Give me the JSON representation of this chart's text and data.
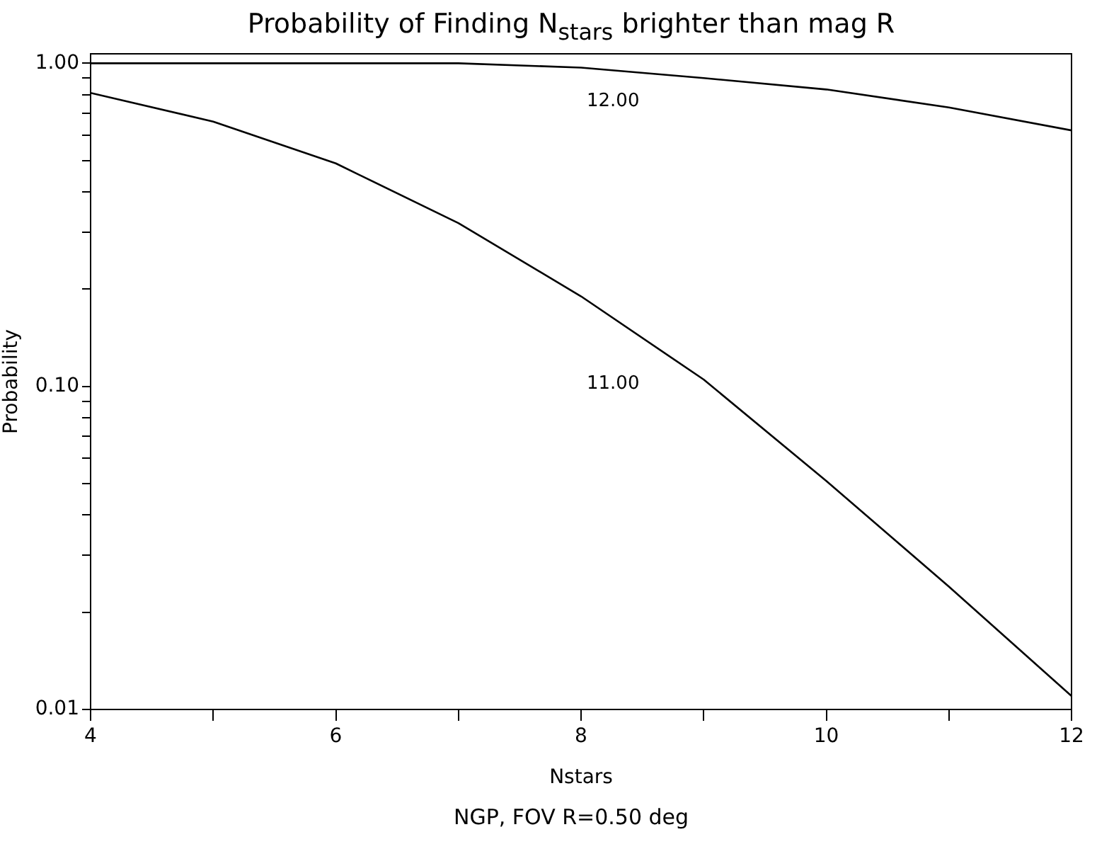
{
  "chart_data": {
    "type": "line",
    "title": "Probability of Finding N$_{stars}$ brighter than mag R",
    "xlabel": "Nstars",
    "ylabel": "Probability",
    "annotations": [
      "NGP, FOV R=0.50 deg"
    ],
    "x": [
      4,
      5,
      6,
      7,
      8,
      9,
      10,
      11,
      12
    ],
    "series": [
      {
        "name": "12.00",
        "color": "#000000",
        "values": [
          1.0,
          1.0,
          1.0,
          1.0,
          0.97,
          0.9,
          0.83,
          0.73,
          0.62
        ]
      },
      {
        "name": "11.00",
        "color": "#000000",
        "values": [
          0.81,
          0.66,
          0.49,
          0.32,
          0.19,
          0.105,
          0.051,
          0.024,
          0.011
        ]
      }
    ],
    "log": "y",
    "grid": false,
    "legend": false,
    "marker": "none",
    "line_style": "solid",
    "xlim": [
      4,
      12
    ],
    "xticks": [
      4,
      {
        "value": 5,
        "label": null
      },
      6,
      {
        "value": 7,
        "label": null
      },
      8,
      {
        "value": 9,
        "label": null
      },
      10,
      {
        "value": 11,
        "label": null
      },
      12
    ],
    "ylim": [
      0.01,
      1.07
    ],
    "yticks": [
      {
        "value": 0.01,
        "label": "0.01"
      },
      {
        "value": 0.02,
        "label": null
      },
      {
        "value": 0.03,
        "label": null
      },
      {
        "value": 0.04,
        "label": null
      },
      {
        "value": 0.05,
        "label": null
      },
      {
        "value": 0.06,
        "label": null
      },
      {
        "value": 0.07,
        "label": null
      },
      {
        "value": 0.08,
        "label": null
      },
      {
        "value": 0.09,
        "label": null
      },
      {
        "value": 0.1,
        "label": "0.10"
      },
      {
        "value": 0.2,
        "label": null
      },
      {
        "value": 0.3,
        "label": null
      },
      {
        "value": 0.4,
        "label": null
      },
      {
        "value": 0.5,
        "label": null
      },
      {
        "value": 0.6,
        "label": null
      },
      {
        "value": 0.7,
        "label": null
      },
      {
        "value": 0.8,
        "label": null
      },
      {
        "value": 0.9,
        "label": null
      },
      {
        "value": 1,
        "label": "1.00"
      }
    ]
  }
}
